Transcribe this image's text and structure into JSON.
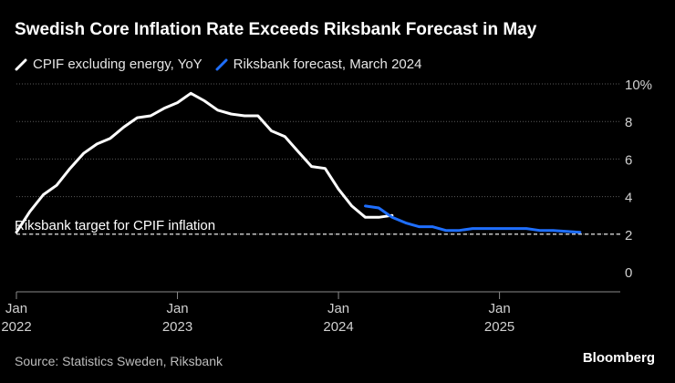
{
  "header": {
    "title": "Swedish Core Inflation Rate Exceeds Riksbank Forecast in May"
  },
  "legend": [
    {
      "label": "CPIF excluding energy, YoY",
      "color": "#ffffff",
      "icon": "line-swatch-icon"
    },
    {
      "label": "Riksbank forecast, March 2024",
      "color": "#1f6fff",
      "icon": "line-swatch-icon"
    }
  ],
  "chart_data": {
    "type": "line",
    "title": "Swedish Core Inflation Rate Exceeds Riksbank Forecast in May",
    "xlabel": "",
    "ylabel": "",
    "ylim": [
      0,
      10
    ],
    "xlim": [
      2022.0,
      2025.75
    ],
    "y_ticks": [
      {
        "value": 0,
        "label": "0"
      },
      {
        "value": 2,
        "label": "2"
      },
      {
        "value": 4,
        "label": "4"
      },
      {
        "value": 6,
        "label": "6"
      },
      {
        "value": 8,
        "label": "8"
      },
      {
        "value": 10,
        "label": "10%"
      }
    ],
    "x_ticks": [
      {
        "value": 2022.0,
        "label_month": "Jan",
        "label_year": "2022"
      },
      {
        "value": 2023.0,
        "label_month": "Jan",
        "label_year": "2023"
      },
      {
        "value": 2024.0,
        "label_month": "Jan",
        "label_year": "2024"
      },
      {
        "value": 2025.0,
        "label_month": "Jan",
        "label_year": "2025"
      }
    ],
    "grid": true,
    "reference_line": {
      "value": 2,
      "label": "Riksbank target for CPIF inflation",
      "style": "dashed"
    },
    "series": [
      {
        "name": "CPIF excluding energy, YoY",
        "color": "#ffffff",
        "x": [
          2022.0,
          2022.083,
          2022.167,
          2022.25,
          2022.333,
          2022.417,
          2022.5,
          2022.583,
          2022.667,
          2022.75,
          2022.833,
          2022.917,
          2023.0,
          2023.083,
          2023.167,
          2023.25,
          2023.333,
          2023.417,
          2023.5,
          2023.583,
          2023.667,
          2023.75,
          2023.833,
          2023.917,
          2024.0,
          2024.083,
          2024.167,
          2024.25,
          2024.333
        ],
        "values": [
          2.1,
          3.2,
          4.1,
          4.6,
          5.5,
          6.3,
          6.8,
          7.1,
          7.7,
          8.2,
          8.3,
          8.7,
          9.0,
          9.5,
          9.1,
          8.6,
          8.4,
          8.3,
          8.3,
          7.5,
          7.2,
          6.4,
          5.6,
          5.5,
          4.4,
          3.5,
          2.9,
          2.9,
          3.0
        ]
      },
      {
        "name": "Riksbank forecast, March 2024",
        "color": "#1f6fff",
        "x": [
          2024.167,
          2024.25,
          2024.333,
          2024.417,
          2024.5,
          2024.583,
          2024.667,
          2024.75,
          2024.833,
          2024.917,
          2025.0,
          2025.083,
          2025.167,
          2025.25,
          2025.333,
          2025.417,
          2025.5
        ],
        "values": [
          3.5,
          3.4,
          2.9,
          2.6,
          2.4,
          2.4,
          2.2,
          2.2,
          2.3,
          2.3,
          2.3,
          2.3,
          2.3,
          2.2,
          2.2,
          2.15,
          2.1
        ]
      }
    ]
  },
  "footer": {
    "source": "Source: Statistics Sweden, Riksbank",
    "brand": "Bloomberg"
  }
}
